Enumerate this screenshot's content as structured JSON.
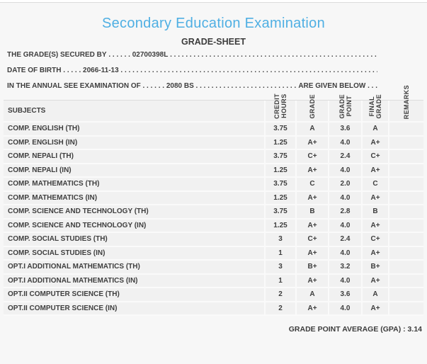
{
  "page": {
    "title": "Secondary Education Examination",
    "subtitle": "GRADE-SHEET"
  },
  "info": {
    "secured_by": {
      "label": "THE GRADE(S) SECURED BY",
      "leader": " . . . . . . ",
      "value": "02700398L",
      "trailer": " . . . . . . . . . . . . . . . . . . . . . . . . . . . . . . . . . . . . . . . . . . . . . . . . . . . . . . . . . . . . . . . . . . . . . ."
    },
    "date_of_birth": {
      "label": "DATE OF BIRTH",
      "leader": " . . . . . ",
      "value": "2066-11-13",
      "trailer": " . . . . . . . . . . . . . . . . . . . . . . . . . . . . . . . . . . . . . . . . . . . . . . . . . . . . . . . . . . . . . . . . . . . . . ."
    },
    "examination": {
      "label": "IN THE ANNUAL SEE EXAMINATION OF",
      "leader": " . . . . . . ",
      "value": "2080 BS",
      "trailer": " . . . . . . . . . . . . . . . . . . . . . . . . . . . . . . . . . . . . . . . . . . . . . . . . . . . . . . . . . . . . . . . . . . . . . . ",
      "suffix": "ARE GIVEN BELOW . . ."
    }
  },
  "table": {
    "headers": {
      "subjects": "SUBJECTS",
      "credit_hours": "CREDIT\nHOURS",
      "grade": "GRADE",
      "grade_point": "GRADE\nPOINT",
      "final_grade": "FINAL\nGRADE",
      "remarks": "REMARKS"
    },
    "rows": [
      {
        "subject": "COMP. ENGLISH (TH)",
        "credit_hours": "3.75",
        "grade": "A",
        "grade_point": "3.6",
        "final_grade": "A",
        "remarks": ""
      },
      {
        "subject": "COMP. ENGLISH (IN)",
        "credit_hours": "1.25",
        "grade": "A+",
        "grade_point": "4.0",
        "final_grade": "A+",
        "remarks": ""
      },
      {
        "subject": "COMP. NEPALI (TH)",
        "credit_hours": "3.75",
        "grade": "C+",
        "grade_point": "2.4",
        "final_grade": "C+",
        "remarks": ""
      },
      {
        "subject": "COMP. NEPALI (IN)",
        "credit_hours": "1.25",
        "grade": "A+",
        "grade_point": "4.0",
        "final_grade": "A+",
        "remarks": ""
      },
      {
        "subject": "COMP. MATHEMATICS (TH)",
        "credit_hours": "3.75",
        "grade": "C",
        "grade_point": "2.0",
        "final_grade": "C",
        "remarks": ""
      },
      {
        "subject": "COMP. MATHEMATICS (IN)",
        "credit_hours": "1.25",
        "grade": "A+",
        "grade_point": "4.0",
        "final_grade": "A+",
        "remarks": ""
      },
      {
        "subject": "COMP. SCIENCE AND TECHNOLOGY (TH)",
        "credit_hours": "3.75",
        "grade": "B",
        "grade_point": "2.8",
        "final_grade": "B",
        "remarks": ""
      },
      {
        "subject": "COMP. SCIENCE AND TECHNOLOGY (IN)",
        "credit_hours": "1.25",
        "grade": "A+",
        "grade_point": "4.0",
        "final_grade": "A+",
        "remarks": ""
      },
      {
        "subject": "COMP. SOCIAL STUDIES (TH)",
        "credit_hours": "3",
        "grade": "C+",
        "grade_point": "2.4",
        "final_grade": "C+",
        "remarks": ""
      },
      {
        "subject": "COMP. SOCIAL STUDIES (IN)",
        "credit_hours": "1",
        "grade": "A+",
        "grade_point": "4.0",
        "final_grade": "A+",
        "remarks": ""
      },
      {
        "subject": "OPT.I ADDITIONAL MATHEMATICS (TH)",
        "credit_hours": "3",
        "grade": "B+",
        "grade_point": "3.2",
        "final_grade": "B+",
        "remarks": ""
      },
      {
        "subject": "OPT.I ADDITIONAL MATHEMATICS (IN)",
        "credit_hours": "1",
        "grade": "A+",
        "grade_point": "4.0",
        "final_grade": "A+",
        "remarks": ""
      },
      {
        "subject": "OPT.II COMPUTER SCIENCE (TH)",
        "credit_hours": "2",
        "grade": "A",
        "grade_point": "3.6",
        "final_grade": "A",
        "remarks": ""
      },
      {
        "subject": "OPT.II COMPUTER SCIENCE (IN)",
        "credit_hours": "2",
        "grade": "A+",
        "grade_point": "4.0",
        "final_grade": "A+",
        "remarks": ""
      }
    ]
  },
  "summary": {
    "gpa_text": "GRADE POINT AVERAGE (GPA) : 3.14"
  },
  "colors": {
    "title_blue": "#4fafe3",
    "text_dark": "#3e3e3e",
    "page_bg": "#f7f7f7",
    "row_band": "#f1f1f1",
    "separator": "#fafafa",
    "border_gray": "#dcdcdc"
  }
}
